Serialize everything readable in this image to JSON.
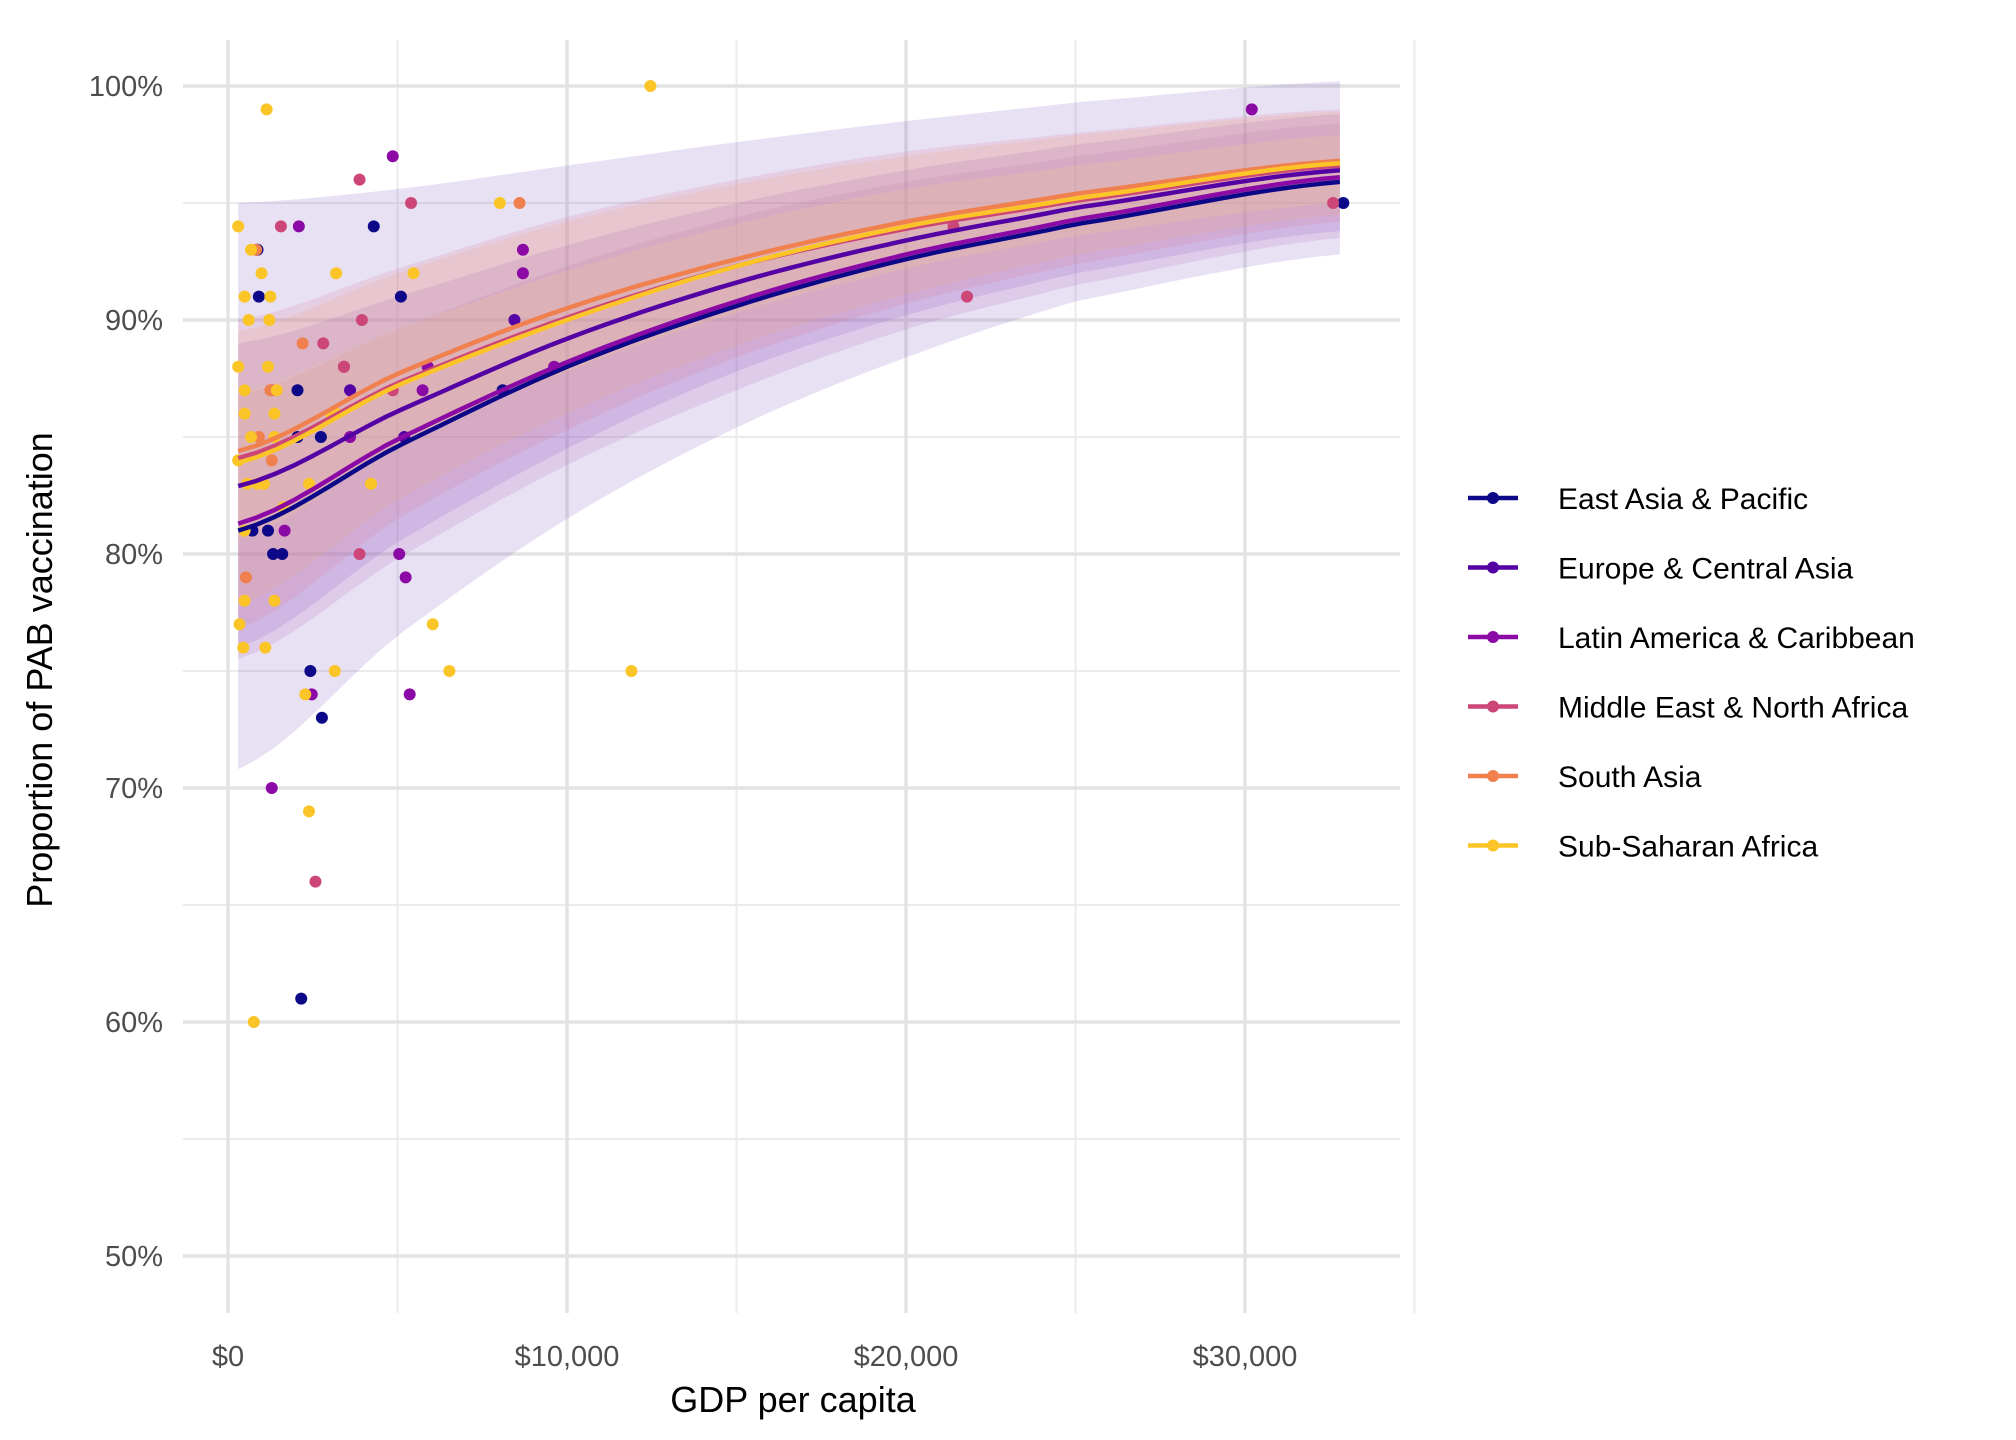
{
  "chart_data": {
    "type": "scatter",
    "title": "",
    "xlabel": "GDP per capita",
    "ylabel": "Proportion of PAB vaccination",
    "xlim": [
      -1300,
      34500
    ],
    "ylim": [
      48,
      102
    ],
    "x_ticks": [
      0,
      10000,
      20000,
      30000
    ],
    "x_tick_labels": [
      "$0",
      "$10,000",
      "$20,000",
      "$30,000"
    ],
    "y_ticks": [
      50,
      60,
      70,
      80,
      90,
      100
    ],
    "y_tick_labels": [
      "50%",
      "60%",
      "70%",
      "80%",
      "90%",
      "100%"
    ],
    "grid": true,
    "legend_position": "right",
    "fit": {
      "type": "logistic-style smooth with confidence bands",
      "x_range": [
        300,
        32800
      ]
    },
    "series": [
      {
        "name": "East Asia & Pacific",
        "color": "#0D0887",
        "band_color": "#7E57C2",
        "fit": {
          "x": [
            300,
            5000,
            10000,
            15000,
            20000,
            25000,
            32800
          ],
          "y": [
            81.0,
            84.6,
            88.0,
            90.6,
            92.6,
            94.1,
            95.9
          ],
          "lower": [
            70.8,
            76.5,
            81.5,
            85.4,
            88.4,
            90.8,
            92.8
          ],
          "upper": [
            95.0,
            95.6,
            96.6,
            97.6,
            98.5,
            99.3,
            100.2
          ]
        },
        "points": [
          {
            "x": 870,
            "y": 93
          },
          {
            "x": 910,
            "y": 91
          },
          {
            "x": 2050,
            "y": 87
          },
          {
            "x": 2050,
            "y": 85
          },
          {
            "x": 2740,
            "y": 85
          },
          {
            "x": 4300,
            "y": 94
          },
          {
            "x": 5100,
            "y": 91
          },
          {
            "x": 1330,
            "y": 80
          },
          {
            "x": 1600,
            "y": 80
          },
          {
            "x": 1180,
            "y": 81
          },
          {
            "x": 720,
            "y": 81
          },
          {
            "x": 2430,
            "y": 75
          },
          {
            "x": 2770,
            "y": 73
          },
          {
            "x": 2160,
            "y": 61
          },
          {
            "x": 8100,
            "y": 87
          },
          {
            "x": 32900,
            "y": 95
          }
        ]
      },
      {
        "name": "Europe & Central Asia",
        "color": "#5402A3",
        "band_color": "#8B52C8",
        "fit": {
          "x": [
            300,
            5000,
            10000,
            15000,
            20000,
            25000,
            32800
          ],
          "y": [
            82.9,
            86.1,
            89.2,
            91.6,
            93.4,
            94.8,
            96.4
          ],
          "lower": [
            76.0,
            80.5,
            84.5,
            87.8,
            90.2,
            92.0,
            93.8
          ],
          "upper": [
            89.0,
            91.0,
            93.2,
            95.0,
            96.4,
            97.5,
            98.8
          ]
        },
        "points": [
          {
            "x": 3600,
            "y": 87
          },
          {
            "x": 8450,
            "y": 90
          },
          {
            "x": 5200,
            "y": 85
          }
        ]
      },
      {
        "name": "Latin America & Caribbean",
        "color": "#8B0AA5",
        "band_color": "#B06AB8",
        "fit": {
          "x": [
            300,
            5000,
            10000,
            15000,
            20000,
            25000,
            32800
          ],
          "y": [
            81.3,
            84.9,
            88.2,
            90.8,
            92.8,
            94.3,
            96.1
          ],
          "lower": [
            75.5,
            79.8,
            83.8,
            87.0,
            89.6,
            91.5,
            93.5
          ],
          "upper": [
            86.8,
            89.6,
            92.3,
            94.4,
            95.9,
            97.0,
            98.4
          ]
        },
        "points": [
          {
            "x": 4860,
            "y": 97
          },
          {
            "x": 2090,
            "y": 94
          },
          {
            "x": 3420,
            "y": 88
          },
          {
            "x": 3600,
            "y": 85
          },
          {
            "x": 5890,
            "y": 88
          },
          {
            "x": 8700,
            "y": 93
          },
          {
            "x": 8700,
            "y": 92
          },
          {
            "x": 9620,
            "y": 88
          },
          {
            "x": 5740,
            "y": 87
          },
          {
            "x": 1670,
            "y": 81
          },
          {
            "x": 1290,
            "y": 70
          },
          {
            "x": 2470,
            "y": 74
          },
          {
            "x": 5360,
            "y": 74
          },
          {
            "x": 5050,
            "y": 80
          },
          {
            "x": 5240,
            "y": 79
          },
          {
            "x": 30200,
            "y": 99
          }
        ]
      },
      {
        "name": "Middle East & North Africa",
        "color": "#CC4778",
        "band_color": "#D9798F",
        "fit": {
          "x": [
            300,
            5000,
            10000,
            15000,
            20000,
            25000,
            32800
          ],
          "y": [
            84.1,
            87.3,
            90.1,
            92.3,
            93.9,
            95.1,
            96.6
          ],
          "lower": [
            76.8,
            81.5,
            85.3,
            88.4,
            90.7,
            92.4,
            94.2
          ],
          "upper": [
            90.0,
            92.2,
            94.4,
            96.0,
            97.2,
            98.0,
            99.0
          ]
        },
        "points": [
          {
            "x": 3880,
            "y": 96
          },
          {
            "x": 1560,
            "y": 94
          },
          {
            "x": 5400,
            "y": 95
          },
          {
            "x": 3950,
            "y": 90
          },
          {
            "x": 2810,
            "y": 89
          },
          {
            "x": 3420,
            "y": 88
          },
          {
            "x": 4860,
            "y": 87
          },
          {
            "x": 3880,
            "y": 80
          },
          {
            "x": 2580,
            "y": 66
          },
          {
            "x": 21400,
            "y": 94
          },
          {
            "x": 21800,
            "y": 91
          },
          {
            "x": 32600,
            "y": 95
          },
          {
            "x": 1290,
            "y": 87
          }
        ]
      },
      {
        "name": "South Asia",
        "color": "#F0804E",
        "band_color": "#F2A77C",
        "fit": {
          "x": [
            300,
            5000,
            10000,
            15000,
            20000,
            25000,
            32800
          ],
          "y": [
            84.4,
            87.7,
            90.5,
            92.6,
            94.2,
            95.4,
            96.8
          ],
          "lower": [
            77.8,
            82.3,
            86.0,
            88.9,
            91.1,
            92.8,
            94.5
          ],
          "upper": [
            89.5,
            92.0,
            94.2,
            95.8,
            97.0,
            97.9,
            98.9
          ]
        },
        "points": [
          {
            "x": 2200,
            "y": 89
          },
          {
            "x": 8600,
            "y": 95
          },
          {
            "x": 1290,
            "y": 84
          },
          {
            "x": 530,
            "y": 79
          },
          {
            "x": 910,
            "y": 85
          },
          {
            "x": 1250,
            "y": 87
          },
          {
            "x": 830,
            "y": 93
          }
        ]
      },
      {
        "name": "Sub-Saharan Africa",
        "color": "#FCC527",
        "band_color": "#F7D58A",
        "fit": {
          "x": [
            300,
            5000,
            10000,
            15000,
            20000,
            25000,
            32800
          ],
          "y": [
            83.9,
            87.2,
            90.0,
            92.3,
            94.0,
            95.2,
            96.7
          ],
          "lower": [
            80.6,
            84.6,
            87.8,
            90.3,
            92.2,
            93.6,
            95.0
          ],
          "upper": [
            86.9,
            89.6,
            92.1,
            94.1,
            95.6,
            96.6,
            97.9
          ]
        },
        "points": [
          {
            "x": 300,
            "y": 94
          },
          {
            "x": 680,
            "y": 93
          },
          {
            "x": 490,
            "y": 91
          },
          {
            "x": 990,
            "y": 92
          },
          {
            "x": 610,
            "y": 90
          },
          {
            "x": 1250,
            "y": 91
          },
          {
            "x": 1220,
            "y": 90
          },
          {
            "x": 300,
            "y": 88
          },
          {
            "x": 1180,
            "y": 88
          },
          {
            "x": 490,
            "y": 87
          },
          {
            "x": 1440,
            "y": 87
          },
          {
            "x": 490,
            "y": 86
          },
          {
            "x": 1370,
            "y": 86
          },
          {
            "x": 3190,
            "y": 86
          },
          {
            "x": 300,
            "y": 84
          },
          {
            "x": 1370,
            "y": 85
          },
          {
            "x": 680,
            "y": 85
          },
          {
            "x": 570,
            "y": 83
          },
          {
            "x": 870,
            "y": 83
          },
          {
            "x": 1060,
            "y": 83
          },
          {
            "x": 3190,
            "y": 92
          },
          {
            "x": 5470,
            "y": 92
          },
          {
            "x": 8020,
            "y": 95
          },
          {
            "x": 1140,
            "y": 99
          },
          {
            "x": 12460,
            "y": 100
          },
          {
            "x": 1630,
            "y": 82
          },
          {
            "x": 3040,
            "y": 86
          },
          {
            "x": 2390,
            "y": 83
          },
          {
            "x": 4220,
            "y": 83
          },
          {
            "x": 490,
            "y": 81
          },
          {
            "x": 1370,
            "y": 78
          },
          {
            "x": 490,
            "y": 78
          },
          {
            "x": 340,
            "y": 77
          },
          {
            "x": 450,
            "y": 76
          },
          {
            "x": 1100,
            "y": 76
          },
          {
            "x": 2280,
            "y": 74
          },
          {
            "x": 3150,
            "y": 75
          },
          {
            "x": 2390,
            "y": 69
          },
          {
            "x": 6040,
            "y": 77
          },
          {
            "x": 6530,
            "y": 75
          },
          {
            "x": 11900,
            "y": 75
          },
          {
            "x": 760,
            "y": 60
          }
        ]
      }
    ]
  }
}
